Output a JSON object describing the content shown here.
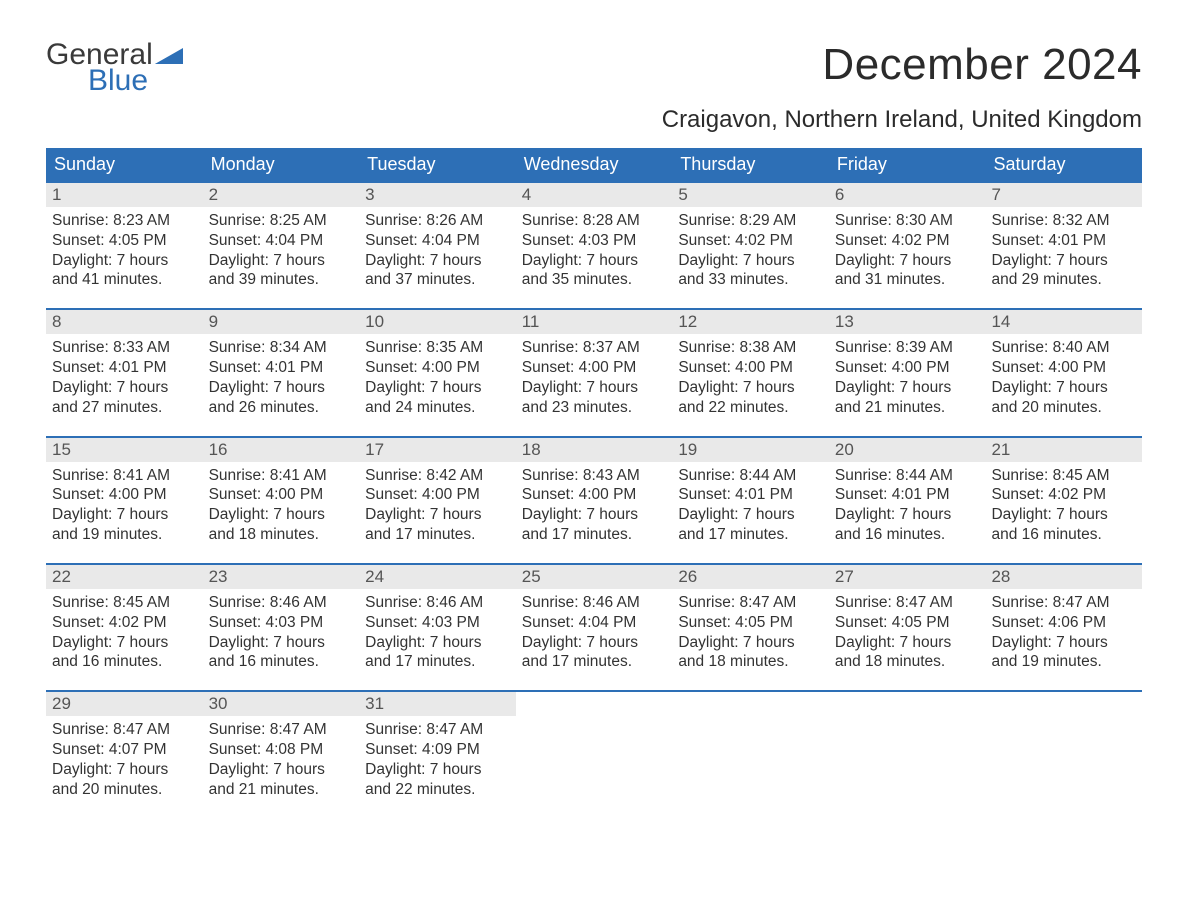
{
  "logo": {
    "top": "General",
    "bottom": "Blue",
    "flag_color": "#2d6fb6"
  },
  "header": {
    "month_title": "December 2024",
    "location": "Craigavon, Northern Ireland, United Kingdom"
  },
  "colors": {
    "header_bar": "#2d6fb6",
    "daynum_bg": "#e9e9e9",
    "text": "#333333",
    "background": "#ffffff"
  },
  "typography": {
    "month_title_fontsize": 44,
    "location_fontsize": 24,
    "weekday_fontsize": 18,
    "daynum_fontsize": 17,
    "body_fontsize": 15.5
  },
  "weekdays": [
    "Sunday",
    "Monday",
    "Tuesday",
    "Wednesday",
    "Thursday",
    "Friday",
    "Saturday"
  ],
  "weeks": [
    [
      {
        "day": "1",
        "sunrise": "Sunrise: 8:23 AM",
        "sunset": "Sunset: 4:05 PM",
        "daylight1": "Daylight: 7 hours",
        "daylight2": "and 41 minutes."
      },
      {
        "day": "2",
        "sunrise": "Sunrise: 8:25 AM",
        "sunset": "Sunset: 4:04 PM",
        "daylight1": "Daylight: 7 hours",
        "daylight2": "and 39 minutes."
      },
      {
        "day": "3",
        "sunrise": "Sunrise: 8:26 AM",
        "sunset": "Sunset: 4:04 PM",
        "daylight1": "Daylight: 7 hours",
        "daylight2": "and 37 minutes."
      },
      {
        "day": "4",
        "sunrise": "Sunrise: 8:28 AM",
        "sunset": "Sunset: 4:03 PM",
        "daylight1": "Daylight: 7 hours",
        "daylight2": "and 35 minutes."
      },
      {
        "day": "5",
        "sunrise": "Sunrise: 8:29 AM",
        "sunset": "Sunset: 4:02 PM",
        "daylight1": "Daylight: 7 hours",
        "daylight2": "and 33 minutes."
      },
      {
        "day": "6",
        "sunrise": "Sunrise: 8:30 AM",
        "sunset": "Sunset: 4:02 PM",
        "daylight1": "Daylight: 7 hours",
        "daylight2": "and 31 minutes."
      },
      {
        "day": "7",
        "sunrise": "Sunrise: 8:32 AM",
        "sunset": "Sunset: 4:01 PM",
        "daylight1": "Daylight: 7 hours",
        "daylight2": "and 29 minutes."
      }
    ],
    [
      {
        "day": "8",
        "sunrise": "Sunrise: 8:33 AM",
        "sunset": "Sunset: 4:01 PM",
        "daylight1": "Daylight: 7 hours",
        "daylight2": "and 27 minutes."
      },
      {
        "day": "9",
        "sunrise": "Sunrise: 8:34 AM",
        "sunset": "Sunset: 4:01 PM",
        "daylight1": "Daylight: 7 hours",
        "daylight2": "and 26 minutes."
      },
      {
        "day": "10",
        "sunrise": "Sunrise: 8:35 AM",
        "sunset": "Sunset: 4:00 PM",
        "daylight1": "Daylight: 7 hours",
        "daylight2": "and 24 minutes."
      },
      {
        "day": "11",
        "sunrise": "Sunrise: 8:37 AM",
        "sunset": "Sunset: 4:00 PM",
        "daylight1": "Daylight: 7 hours",
        "daylight2": "and 23 minutes."
      },
      {
        "day": "12",
        "sunrise": "Sunrise: 8:38 AM",
        "sunset": "Sunset: 4:00 PM",
        "daylight1": "Daylight: 7 hours",
        "daylight2": "and 22 minutes."
      },
      {
        "day": "13",
        "sunrise": "Sunrise: 8:39 AM",
        "sunset": "Sunset: 4:00 PM",
        "daylight1": "Daylight: 7 hours",
        "daylight2": "and 21 minutes."
      },
      {
        "day": "14",
        "sunrise": "Sunrise: 8:40 AM",
        "sunset": "Sunset: 4:00 PM",
        "daylight1": "Daylight: 7 hours",
        "daylight2": "and 20 minutes."
      }
    ],
    [
      {
        "day": "15",
        "sunrise": "Sunrise: 8:41 AM",
        "sunset": "Sunset: 4:00 PM",
        "daylight1": "Daylight: 7 hours",
        "daylight2": "and 19 minutes."
      },
      {
        "day": "16",
        "sunrise": "Sunrise: 8:41 AM",
        "sunset": "Sunset: 4:00 PM",
        "daylight1": "Daylight: 7 hours",
        "daylight2": "and 18 minutes."
      },
      {
        "day": "17",
        "sunrise": "Sunrise: 8:42 AM",
        "sunset": "Sunset: 4:00 PM",
        "daylight1": "Daylight: 7 hours",
        "daylight2": "and 17 minutes."
      },
      {
        "day": "18",
        "sunrise": "Sunrise: 8:43 AM",
        "sunset": "Sunset: 4:00 PM",
        "daylight1": "Daylight: 7 hours",
        "daylight2": "and 17 minutes."
      },
      {
        "day": "19",
        "sunrise": "Sunrise: 8:44 AM",
        "sunset": "Sunset: 4:01 PM",
        "daylight1": "Daylight: 7 hours",
        "daylight2": "and 17 minutes."
      },
      {
        "day": "20",
        "sunrise": "Sunrise: 8:44 AM",
        "sunset": "Sunset: 4:01 PM",
        "daylight1": "Daylight: 7 hours",
        "daylight2": "and 16 minutes."
      },
      {
        "day": "21",
        "sunrise": "Sunrise: 8:45 AM",
        "sunset": "Sunset: 4:02 PM",
        "daylight1": "Daylight: 7 hours",
        "daylight2": "and 16 minutes."
      }
    ],
    [
      {
        "day": "22",
        "sunrise": "Sunrise: 8:45 AM",
        "sunset": "Sunset: 4:02 PM",
        "daylight1": "Daylight: 7 hours",
        "daylight2": "and 16 minutes."
      },
      {
        "day": "23",
        "sunrise": "Sunrise: 8:46 AM",
        "sunset": "Sunset: 4:03 PM",
        "daylight1": "Daylight: 7 hours",
        "daylight2": "and 16 minutes."
      },
      {
        "day": "24",
        "sunrise": "Sunrise: 8:46 AM",
        "sunset": "Sunset: 4:03 PM",
        "daylight1": "Daylight: 7 hours",
        "daylight2": "and 17 minutes."
      },
      {
        "day": "25",
        "sunrise": "Sunrise: 8:46 AM",
        "sunset": "Sunset: 4:04 PM",
        "daylight1": "Daylight: 7 hours",
        "daylight2": "and 17 minutes."
      },
      {
        "day": "26",
        "sunrise": "Sunrise: 8:47 AM",
        "sunset": "Sunset: 4:05 PM",
        "daylight1": "Daylight: 7 hours",
        "daylight2": "and 18 minutes."
      },
      {
        "day": "27",
        "sunrise": "Sunrise: 8:47 AM",
        "sunset": "Sunset: 4:05 PM",
        "daylight1": "Daylight: 7 hours",
        "daylight2": "and 18 minutes."
      },
      {
        "day": "28",
        "sunrise": "Sunrise: 8:47 AM",
        "sunset": "Sunset: 4:06 PM",
        "daylight1": "Daylight: 7 hours",
        "daylight2": "and 19 minutes."
      }
    ],
    [
      {
        "day": "29",
        "sunrise": "Sunrise: 8:47 AM",
        "sunset": "Sunset: 4:07 PM",
        "daylight1": "Daylight: 7 hours",
        "daylight2": "and 20 minutes."
      },
      {
        "day": "30",
        "sunrise": "Sunrise: 8:47 AM",
        "sunset": "Sunset: 4:08 PM",
        "daylight1": "Daylight: 7 hours",
        "daylight2": "and 21 minutes."
      },
      {
        "day": "31",
        "sunrise": "Sunrise: 8:47 AM",
        "sunset": "Sunset: 4:09 PM",
        "daylight1": "Daylight: 7 hours",
        "daylight2": "and 22 minutes."
      },
      {
        "empty": true
      },
      {
        "empty": true
      },
      {
        "empty": true
      },
      {
        "empty": true
      }
    ]
  ]
}
